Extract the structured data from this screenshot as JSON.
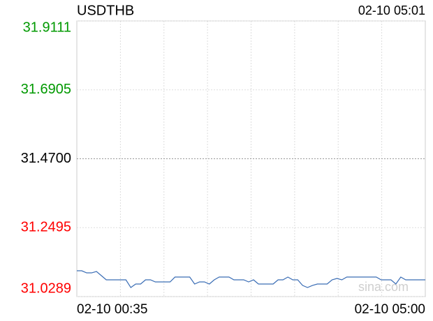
{
  "chart_data": {
    "type": "line",
    "title": "USDTHB",
    "timestamp": "02-10 05:01",
    "x_labels": [
      "02-10 00:35",
      "02-10 05:00"
    ],
    "watermark": "sina.com",
    "ylim": [
      31.0289,
      31.9111
    ],
    "yticks": [
      31.9111,
      31.6905,
      {
        "value": 31.47,
        "label": "31.4700"
      },
      31.2495,
      31.0289
    ],
    "ytick_colors": [
      "#009900",
      "#009900",
      "#000000",
      "#ff0000",
      "#ff0000"
    ],
    "grid": true,
    "series": [
      {
        "color": "#3a6db5",
        "values": [
          31.1115,
          31.1115,
          31.1048,
          31.1048,
          31.1093,
          31.0959,
          31.0825,
          31.0825,
          31.0825,
          31.0825,
          31.0825,
          31.0579,
          31.0691,
          31.0691,
          31.0825,
          31.0825,
          31.0758,
          31.0758,
          31.0758,
          31.0758,
          31.0914,
          31.0914,
          31.0914,
          31.0914,
          31.0691,
          31.0758,
          31.0758,
          31.0691,
          31.0825,
          31.0914,
          31.0914,
          31.0914,
          31.0825,
          31.0825,
          31.0825,
          31.0758,
          31.0825,
          31.0691,
          31.0691,
          31.0691,
          31.0691,
          31.0825,
          31.0825,
          31.0914,
          31.0825,
          31.0825,
          31.0646,
          31.0579,
          31.0646,
          31.0691,
          31.0691,
          31.0691,
          31.0825,
          31.087,
          31.0825,
          31.0914,
          31.0914,
          31.0914,
          31.0914,
          31.0914,
          31.0914,
          31.0914,
          31.0825,
          31.0825,
          31.0825,
          31.0691,
          31.0914,
          31.0825,
          31.0825,
          31.0825,
          31.0825,
          31.0825
        ]
      }
    ]
  }
}
